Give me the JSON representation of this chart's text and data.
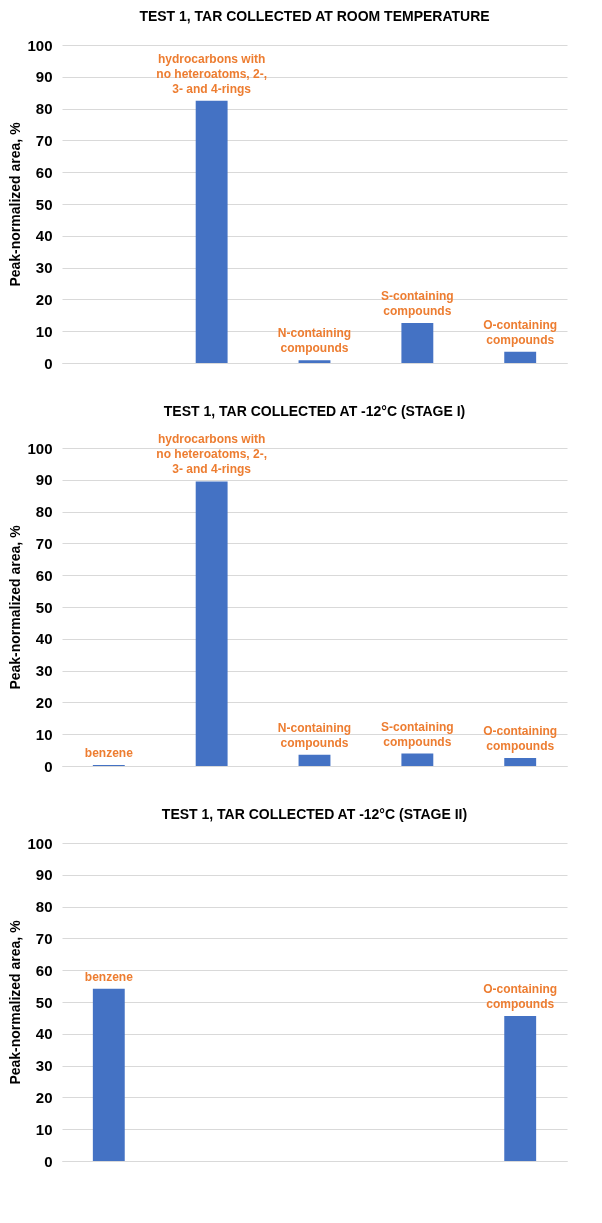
{
  "chart_data": [
    {
      "type": "bar",
      "title": "TEST 1, TAR COLLECTED AT ROOM TEMPERATURE",
      "ylabel": "Peak-normalized area, %",
      "categories": [
        null,
        "hydrocarbons with no heteroatoms, 2-, 3- and 4-rings",
        "N-containing compounds",
        "S-containing compounds",
        "O-containing compounds"
      ],
      "values": [
        null,
        82.5,
        0.9,
        12.6,
        3.5
      ],
      "color": "#4472c4",
      "ylim": [
        0,
        100
      ],
      "yticks": [
        0,
        10,
        20,
        30,
        40,
        50,
        60,
        70,
        80,
        90,
        100
      ],
      "grid": "y",
      "tick_labels": "y"
    },
    {
      "type": "bar",
      "title": "TEST 1, TAR COLLECTED AT -12°C (STAGE I)",
      "ylabel": "Peak-normalized area, %",
      "categories": [
        "benzene",
        "hydrocarbons with no heteroatoms, 2-, 3- and 4-rings",
        "N-containing compounds",
        "S-containing compounds",
        "O-containing compounds"
      ],
      "values": [
        0.3,
        89.5,
        3.5,
        3.9,
        2.5
      ],
      "color": "#4472c4",
      "ylim": [
        0,
        100
      ],
      "yticks": [
        0,
        10,
        20,
        30,
        40,
        50,
        60,
        70,
        80,
        90,
        100
      ],
      "grid": "y",
      "tick_labels": "y"
    },
    {
      "type": "bar",
      "title": "TEST 1, TAR COLLECTED AT -12°C (STAGE II)",
      "ylabel": "Peak-normalized area, %",
      "categories": [
        "benzene",
        null,
        null,
        null,
        "O-containing compounds"
      ],
      "values": [
        54.2,
        null,
        null,
        null,
        45.6
      ],
      "color": "#4472c4",
      "ylim": [
        0,
        100
      ],
      "yticks": [
        0,
        10,
        20,
        30,
        40,
        50,
        60,
        70,
        80,
        90,
        100
      ],
      "grid": "y",
      "tick_labels": "y"
    }
  ]
}
